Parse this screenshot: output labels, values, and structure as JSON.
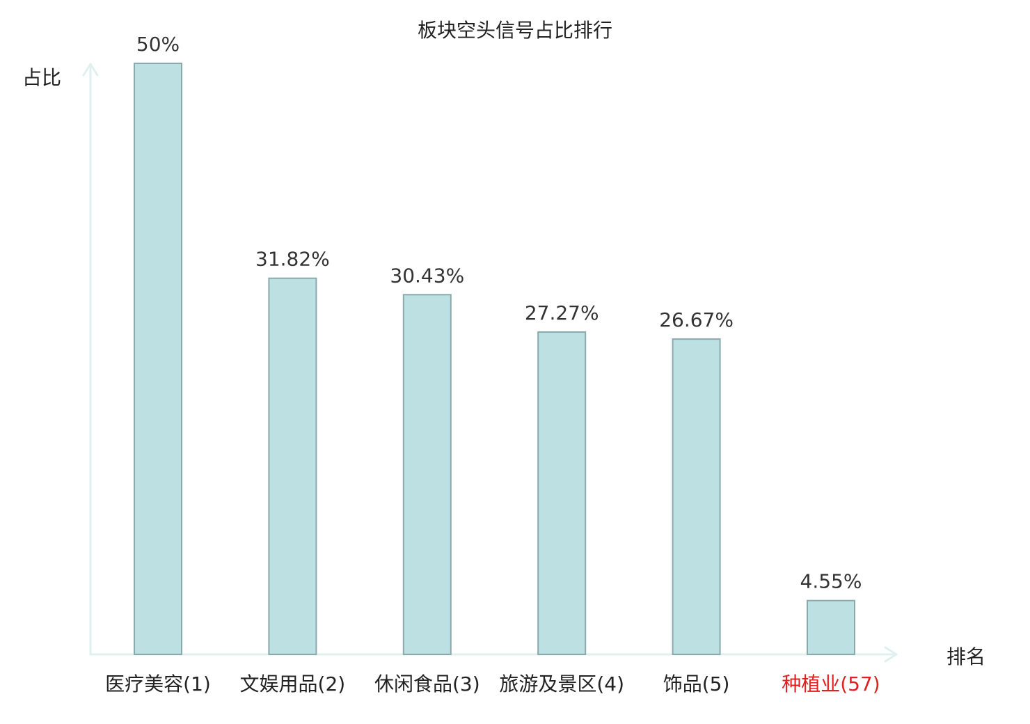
{
  "chart_data": {
    "type": "bar",
    "title": "板块空头信号占比排行",
    "ylabel": "占比",
    "xlabel": "排名",
    "categories": [
      "医疗美容(1)",
      "文娱用品(2)",
      "休闲食品(3)",
      "旅游及景区(4)",
      "饰品(5)",
      "种植业(57)"
    ],
    "values": [
      50,
      31.82,
      30.43,
      27.27,
      26.67,
      4.55
    ],
    "value_labels": [
      "50%",
      "31.82%",
      "30.43%",
      "27.27%",
      "26.67%",
      "4.55%"
    ],
    "highlight_index": 5,
    "ylim": [
      0,
      50
    ],
    "grid": false,
    "colors": {
      "bar_fill": "#bde0e3",
      "bar_stroke": "#8aa9ad",
      "axis": "#dff0ee",
      "highlight_text": "#e02020"
    }
  }
}
